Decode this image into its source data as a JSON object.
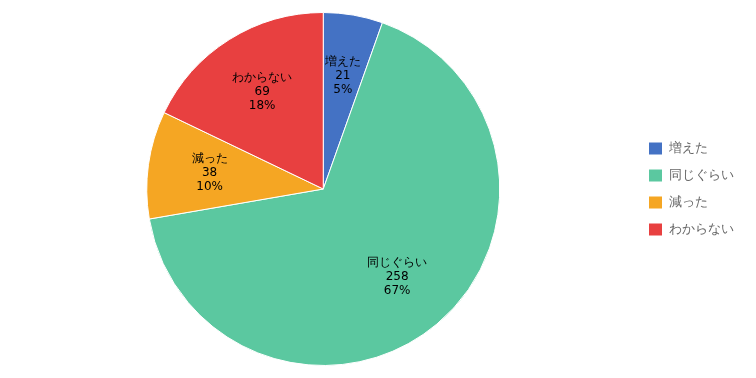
{
  "chart_data": {
    "type": "pie",
    "categories": [
      "増えた",
      "同じぐらい",
      "減った",
      "わからない"
    ],
    "values": [
      21,
      258,
      38,
      69
    ],
    "percentages": [
      5,
      67,
      10,
      18
    ],
    "percentage_labels": [
      "5%",
      "67%",
      "10%",
      "18%"
    ],
    "colors": [
      "#4472C4",
      "#5BC8A0",
      "#F5A623",
      "#E84040"
    ],
    "data_labels": true,
    "legend": "right"
  }
}
